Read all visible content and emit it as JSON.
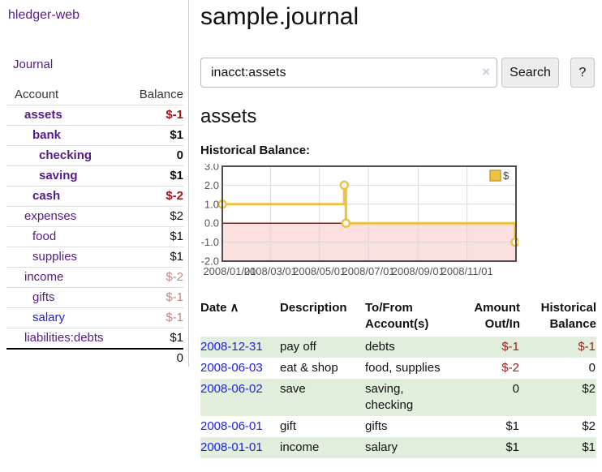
{
  "app": {
    "brand": "hledger-web"
  },
  "sidebar": {
    "journal_link": "Journal",
    "accounts_header": {
      "account": "Account",
      "balance": "Balance"
    },
    "accounts": [
      {
        "label": "assets",
        "depth": 0,
        "bold": true,
        "link_style": "purple",
        "balance": "$-1",
        "balance_class": "neg-strong"
      },
      {
        "label": "bank",
        "depth": 1,
        "bold": true,
        "link_style": "purple",
        "balance": "$1",
        "balance_class": ""
      },
      {
        "label": "checking",
        "depth": 2,
        "bold": true,
        "link_style": "purple",
        "balance": "0",
        "balance_class": ""
      },
      {
        "label": "saving",
        "depth": 2,
        "bold": true,
        "link_style": "purple",
        "balance": "$1",
        "balance_class": ""
      },
      {
        "label": "cash",
        "depth": 1,
        "bold": true,
        "link_style": "purple",
        "balance": "$-2",
        "balance_class": "neg-strong"
      },
      {
        "label": "expenses",
        "depth": 0,
        "bold": false,
        "link_style": "purple",
        "balance": "$2",
        "balance_class": ""
      },
      {
        "label": "food",
        "depth": 1,
        "bold": false,
        "link_style": "purple",
        "balance": "$1",
        "balance_class": ""
      },
      {
        "label": "supplies",
        "depth": 1,
        "bold": false,
        "link_style": "purple",
        "balance": "$1",
        "balance_class": ""
      },
      {
        "label": "income",
        "depth": 0,
        "bold": false,
        "link_style": "purple",
        "balance": "$-2",
        "balance_class": "neg-soft"
      },
      {
        "label": "gifts",
        "depth": 1,
        "bold": false,
        "link_style": "purple",
        "balance": "$-1",
        "balance_class": "neg-soft"
      },
      {
        "label": "salary",
        "depth": 1,
        "bold": false,
        "link_style": "blue",
        "balance": "$-1",
        "balance_class": "neg-soft"
      },
      {
        "label": "liabilities:debts",
        "depth": 0,
        "bold": false,
        "link_style": "purple",
        "balance": "$1",
        "balance_class": ""
      }
    ],
    "total": "0"
  },
  "header": {
    "title": "sample.journal"
  },
  "search": {
    "query": "inacct:assets",
    "clear_icon": "×",
    "search_label": "Search",
    "help_label": "?"
  },
  "account_page": {
    "title": "assets",
    "chart_label": "Historical Balance:"
  },
  "chart_data": {
    "type": "line",
    "step": true,
    "title": "Historical Balance:",
    "series": [
      {
        "name": "$",
        "color": "#EDC240",
        "points": [
          [
            "2008-01-01",
            1
          ],
          [
            "2008-06-01",
            2
          ],
          [
            "2008-06-03",
            0
          ],
          [
            "2008-12-31",
            -1
          ]
        ]
      }
    ],
    "x_ticks": [
      "2008/01/01",
      "2008/03/01",
      "2008/05/01",
      "2008/07/01",
      "2008/09/01",
      "2008/11/01"
    ],
    "y_ticks": [
      3.0,
      2.0,
      1.0,
      0.0,
      -1.0,
      -2.0
    ],
    "ylim": [
      -2,
      3
    ],
    "xlim": [
      "2008-01-01",
      "2009-01-01"
    ],
    "grid": true,
    "negative_region_fill": "#fcdfdf",
    "zero_line_color": "#9b1414",
    "border_color": "#4d4d4d",
    "tick_label_color": "#545454",
    "legend": {
      "label": "$",
      "position": "top-right",
      "swatch_color": "#EDC240"
    }
  },
  "register": {
    "columns": [
      "Date",
      "Description",
      "To/From Account(s)",
      "Amount Out/In",
      "Historical Balance"
    ],
    "sort_indicator": "∧",
    "rows": [
      {
        "date": "2008-12-31",
        "description": "pay off",
        "accounts": "debts",
        "amount": "$-1",
        "amount_class": "neg",
        "balance": "$-1",
        "balance_class": "neg"
      },
      {
        "date": "2008-06-03",
        "description": "eat & shop",
        "accounts": "food, supplies",
        "amount": "$-2",
        "amount_class": "neg",
        "balance": "0",
        "balance_class": ""
      },
      {
        "date": "2008-06-02",
        "description": "save",
        "accounts": "saving, checking",
        "amount": "0",
        "amount_class": "",
        "balance": "$2",
        "balance_class": ""
      },
      {
        "date": "2008-06-01",
        "description": "gift",
        "accounts": "gifts",
        "amount": "$1",
        "amount_class": "",
        "balance": "$2",
        "balance_class": ""
      },
      {
        "date": "2008-01-01",
        "description": "income",
        "accounts": "salary",
        "amount": "$1",
        "amount_class": "",
        "balance": "$1",
        "balance_class": ""
      }
    ]
  },
  "colors": {
    "link_purple": "#551A8B",
    "link_blue": "#2222dd",
    "negative_strong": "#9d1515",
    "negative_soft": "#c38787",
    "stripe_green": "#e1eedb"
  }
}
